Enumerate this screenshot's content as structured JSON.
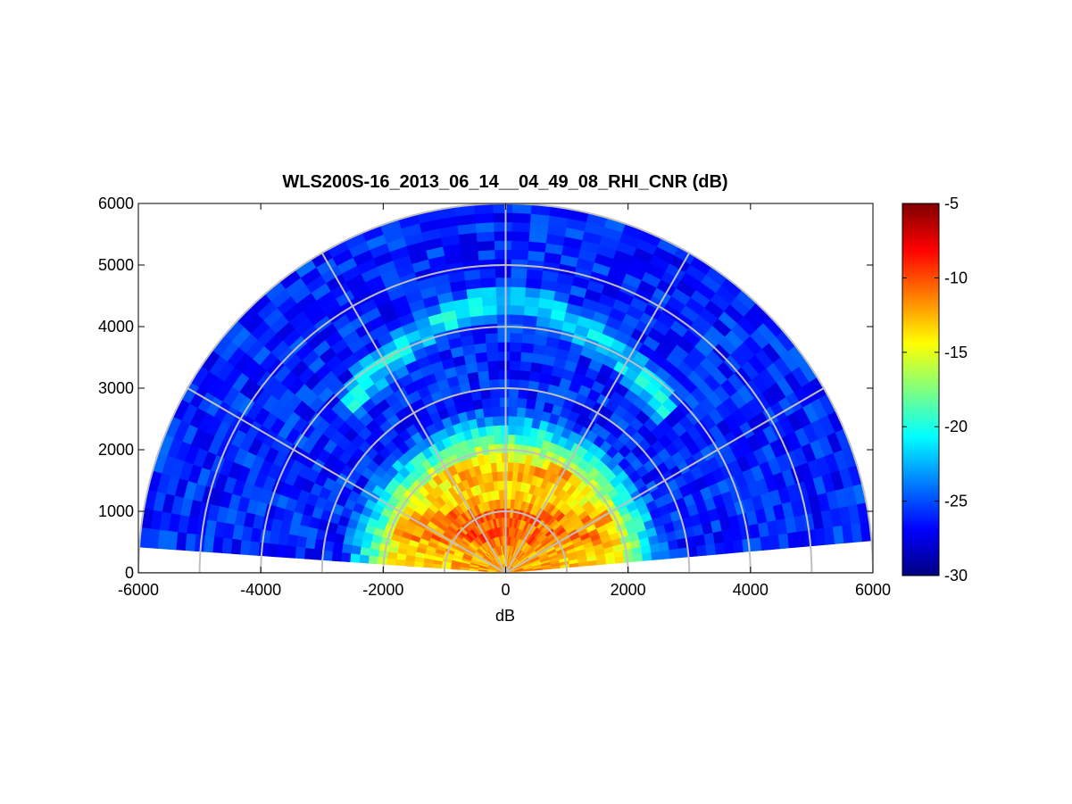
{
  "chart_data": {
    "type": "heatmap",
    "subtype": "polar-rhi-scan",
    "title": "WLS200S-16_2013_06_14__04_49_08_RHI_CNR (dB)",
    "xlabel": "dB",
    "ylabel": "",
    "xlim": [
      -6000,
      6000
    ],
    "ylim": [
      0,
      6000
    ],
    "x_ticks": [
      -6000,
      -4000,
      -2000,
      0,
      2000,
      4000,
      6000
    ],
    "y_ticks": [
      0,
      1000,
      2000,
      3000,
      4000,
      5000,
      6000
    ],
    "range_rings": [
      1000,
      2000,
      3000,
      4000,
      5000,
      6000
    ],
    "radial_lines_deg": [
      0,
      30,
      60,
      90,
      120,
      150,
      180
    ],
    "elevation_range_deg": [
      5,
      175
    ],
    "max_range": 6000,
    "colormap": "jet",
    "colorbar": {
      "range": [
        -30,
        -5
      ],
      "ticks": [
        -30,
        -25,
        -20,
        -15,
        -10,
        -5
      ],
      "labels": [
        "-30",
        "-25",
        "-20",
        "-15",
        "-10",
        "-5"
      ]
    },
    "field_features": {
      "high_cnr_core": {
        "range_extent": [
          0,
          2000
        ],
        "value_dB": -12
      },
      "enhanced_layers_range": [
        600,
        900,
        1600
      ],
      "enhanced_arc_range": 4500,
      "background_value_dB": -26
    },
    "grid": true
  }
}
